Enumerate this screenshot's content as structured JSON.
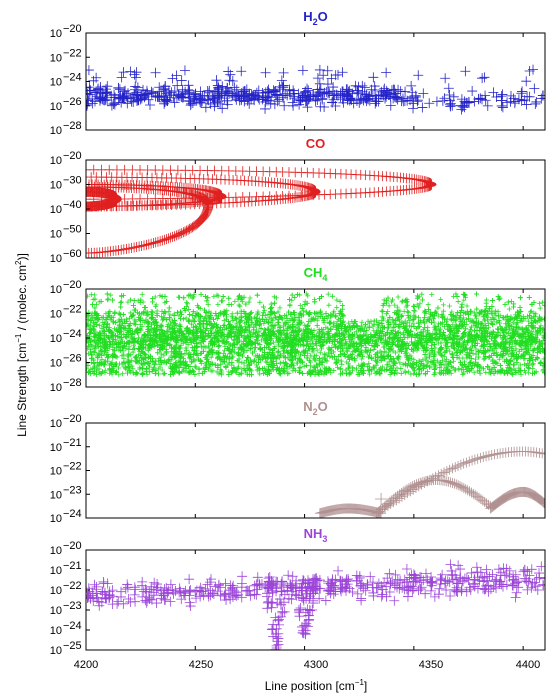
{
  "figure": {
    "ylabel_main": "Line Strength  [cm",
    "ylabel_sup1": "−1",
    "ylabel_mid": " / (molec. cm",
    "ylabel_sup2": "2",
    "ylabel_end": ")]",
    "xlabel_main": "Line position [cm",
    "xlabel_sup": "−1",
    "xlabel_end": "]",
    "xticks": [
      "4200",
      "4250",
      "4300",
      "4350",
      "4400"
    ]
  },
  "chart_data": [
    {
      "type": "scatter",
      "title_parts": [
        "H",
        "2",
        "O"
      ],
      "color": "#2323c8",
      "xlim": [
        4200,
        4410
      ],
      "yscale": "log",
      "ylim_exp": [
        -28,
        -20
      ],
      "ytick_exps": [
        -20,
        -22,
        -24,
        -26,
        -28
      ],
      "ytick_labels": [
        "10",
        "10",
        "10",
        "10",
        "10"
      ],
      "ytick_sups": [
        "−20",
        "−22",
        "−24",
        "−26",
        "−28"
      ],
      "description_of_points": "dense random scatter of lines, log10 strength mostly between -27 and -23",
      "points_summary": {
        "x_range": [
          4200,
          4410
        ],
        "log10_y_range": [
          -27.3,
          -22.9
        ],
        "density_note": "sparser above 4350"
      }
    },
    {
      "type": "scatter",
      "title_parts": [
        "CO",
        "",
        ""
      ],
      "color": "#e02020",
      "xlim": [
        4200,
        4410
      ],
      "yscale": "log",
      "ylim_exp": [
        -60,
        -20
      ],
      "ytick_exps": [
        -20,
        -30,
        -40,
        -50,
        -60
      ],
      "ytick_labels": [
        "10",
        "10",
        "10",
        "10",
        "10"
      ],
      "ytick_sups": [
        "−20",
        "−30",
        "−40",
        "−50",
        "−60"
      ],
      "bands": [
        {
          "start": 4200,
          "tip": 4358,
          "log10_top": -24,
          "log10_bottom": -36,
          "log10_tip": -30
        },
        {
          "start": 4200,
          "tip": 4305,
          "log10_top": -27,
          "log10_bottom": -39,
          "log10_tip": -33
        },
        {
          "start": 4200,
          "tip": 4262,
          "log10_top": -30,
          "log10_bottom": -39,
          "log10_tip": -35
        },
        {
          "start": 4200,
          "tip": 4256,
          "log10_top": -31,
          "log10_bottom": -58,
          "log10_tip": -38
        },
        {
          "start": 4200,
          "tip": 4214,
          "log10_top": -33,
          "log10_bottom": -39,
          "log10_tip": -36
        }
      ]
    },
    {
      "type": "scatter",
      "title_parts": [
        "CH",
        "4",
        ""
      ],
      "color": "#22dd22",
      "xlim": [
        4200,
        4410
      ],
      "yscale": "log",
      "ylim_exp": [
        -28,
        -20
      ],
      "ytick_exps": [
        -20,
        -22,
        -24,
        -26,
        -28
      ],
      "ytick_labels": [
        "10",
        "10",
        "10",
        "10",
        "10"
      ],
      "ytick_sups": [
        "−20",
        "−22",
        "−24",
        "−26",
        "−28"
      ],
      "points_summary": {
        "x_range": [
          4200,
          4410
        ],
        "log10_y_range": [
          -27,
          -20.2
        ],
        "gap_x": [
          4318,
          4335
        ],
        "gap_log10_above": -22.6
      }
    },
    {
      "type": "scatter",
      "title_parts": [
        "N",
        "2",
        "O"
      ],
      "color": "#b09090",
      "xlim": [
        4200,
        4410
      ],
      "yscale": "log",
      "ylim_exp": [
        -24,
        -20
      ],
      "ytick_exps": [
        -20,
        -21,
        -22,
        -23,
        -24
      ],
      "ytick_labels": [
        "10",
        "10",
        "10",
        "10",
        "10"
      ],
      "ytick_sups": [
        "−20",
        "−21",
        "−22",
        "−23",
        "−24"
      ],
      "arcs": [
        {
          "x_start": 4307,
          "x_peak": 4320,
          "x_end": 4335,
          "log10_start": -23.8,
          "log10_peak": -23.6,
          "log10_end": -23.8
        },
        {
          "x_start": 4333,
          "x_peak": 4400,
          "x_end": 4410,
          "log10_start": -23.8,
          "log10_peak": -21.2,
          "log10_end": -21.3
        },
        {
          "x_start": 4333,
          "x_peak": 4360,
          "x_end": 4385,
          "log10_start": -23.8,
          "log10_peak": -22.4,
          "log10_end": -23.5
        },
        {
          "x_start": 4385,
          "x_peak": 4400,
          "x_end": 4410,
          "log10_start": -23.6,
          "log10_peak": -22.9,
          "log10_end": -23.4
        }
      ]
    },
    {
      "type": "scatter",
      "title_parts": [
        "NH",
        "3",
        ""
      ],
      "color": "#9b44d8",
      "xlim": [
        4200,
        4410
      ],
      "yscale": "log",
      "ylim_exp": [
        -25,
        -20
      ],
      "ytick_exps": [
        -20,
        -21,
        -22,
        -23,
        -24,
        -25
      ],
      "ytick_labels": [
        "10",
        "10",
        "10",
        "10",
        "10",
        "10"
      ],
      "ytick_sups": [
        "−20",
        "−21",
        "−22",
        "−23",
        "−24",
        "−25"
      ],
      "points_summary": {
        "x_range": [
          4200,
          4410
        ],
        "log10_y_range": [
          -23.2,
          -20.3
        ],
        "dips": [
          {
            "x": 4287,
            "log10_min": -25
          },
          {
            "x": 4300,
            "log10_min": -24.3
          }
        ]
      }
    }
  ]
}
